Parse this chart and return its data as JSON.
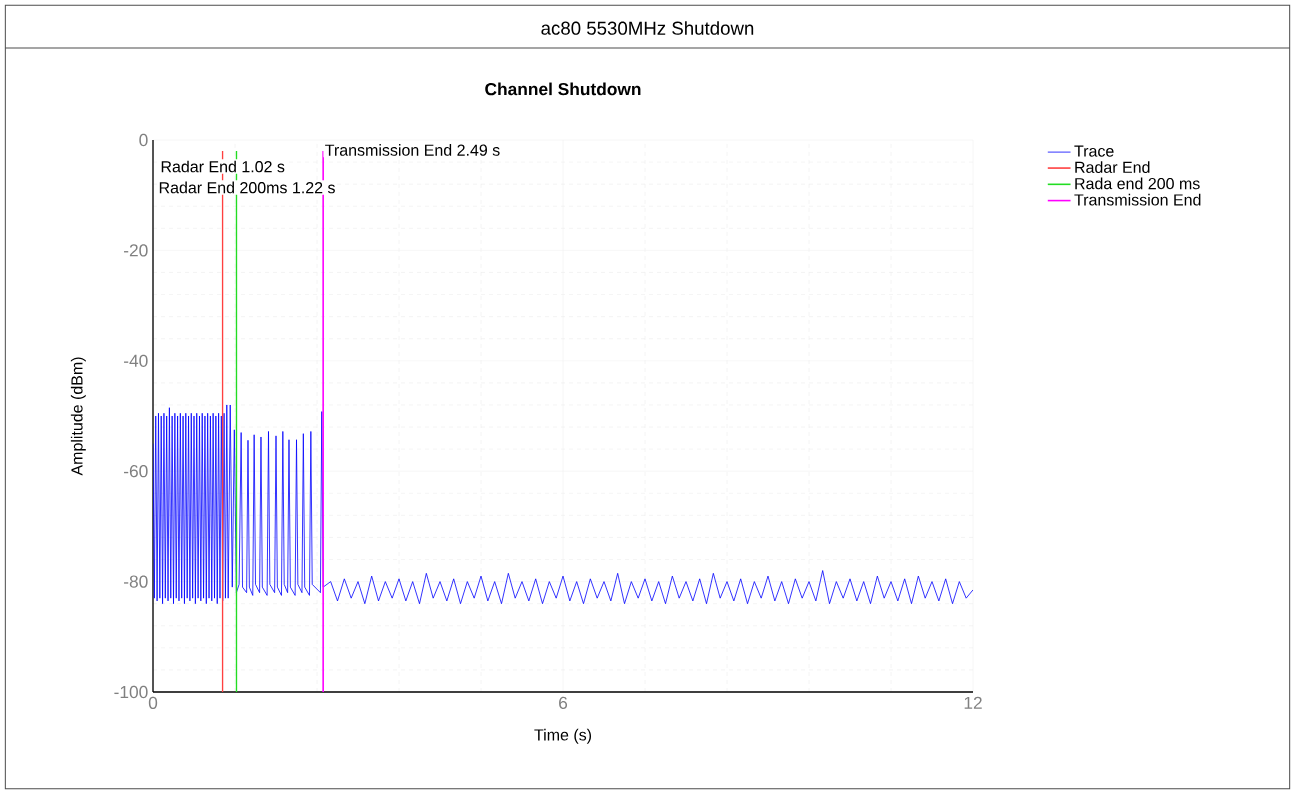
{
  "chart_data": {
    "type": "line",
    "title": "ac80 5530MHz Shutdown",
    "subtitle": "Channel Shutdown",
    "xlabel": "Time (s)",
    "ylabel": "Amplitude (dBm)",
    "xlim": [
      0,
      12
    ],
    "ylim": [
      -100,
      0
    ],
    "xticks": [
      0,
      6,
      12
    ],
    "yticks": [
      -100,
      -80,
      -60,
      -40,
      -20,
      0
    ],
    "grid": true,
    "legend": "top right",
    "marker": "none",
    "line_style": "solid",
    "series": [
      {
        "name": "Trace",
        "color": "#0000ff",
        "x": [
          0,
          0.02,
          0.04,
          0.06,
          0.08,
          0.1,
          0.12,
          0.14,
          0.16,
          0.18,
          0.2,
          0.22,
          0.24,
          0.26,
          0.28,
          0.3,
          0.32,
          0.34,
          0.36,
          0.38,
          0.4,
          0.42,
          0.44,
          0.46,
          0.48,
          0.5,
          0.52,
          0.54,
          0.56,
          0.58,
          0.6,
          0.62,
          0.64,
          0.66,
          0.68,
          0.7,
          0.72,
          0.74,
          0.76,
          0.78,
          0.8,
          0.82,
          0.84,
          0.86,
          0.88,
          0.9,
          0.92,
          0.94,
          0.96,
          0.98,
          1.0,
          1.02,
          1.04,
          1.06,
          1.08,
          1.1,
          1.13,
          1.16,
          1.19,
          1.22,
          1.26,
          1.29,
          1.31,
          1.37,
          1.39,
          1.41,
          1.46,
          1.48,
          1.5,
          1.56,
          1.58,
          1.6,
          1.67,
          1.69,
          1.71,
          1.78,
          1.8,
          1.82,
          1.88,
          1.9,
          1.92,
          1.97,
          1.99,
          2.01,
          2.08,
          2.1,
          2.12,
          2.18,
          2.2,
          2.22,
          2.29,
          2.31,
          2.33,
          2.45,
          2.47,
          2.49,
          2.6,
          2.7,
          2.8,
          2.9,
          3.0,
          3.1,
          3.2,
          3.3,
          3.4,
          3.5,
          3.6,
          3.7,
          3.8,
          3.9,
          4.0,
          4.1,
          4.2,
          4.3,
          4.4,
          4.5,
          4.6,
          4.7,
          4.8,
          4.9,
          5.0,
          5.1,
          5.2,
          5.3,
          5.4,
          5.5,
          5.6,
          5.7,
          5.8,
          5.9,
          6.0,
          6.1,
          6.2,
          6.3,
          6.4,
          6.5,
          6.6,
          6.7,
          6.8,
          6.9,
          7.0,
          7.1,
          7.2,
          7.3,
          7.4,
          7.5,
          7.6,
          7.7,
          7.8,
          7.9,
          8.0,
          8.1,
          8.2,
          8.3,
          8.4,
          8.5,
          8.6,
          8.7,
          8.8,
          8.9,
          9.0,
          9.1,
          9.2,
          9.3,
          9.4,
          9.5,
          9.6,
          9.7,
          9.8,
          9.9,
          10.0,
          10.1,
          10.2,
          10.3,
          10.4,
          10.5,
          10.6,
          10.7,
          10.8,
          10.9,
          11.0,
          11.1,
          11.2,
          11.3,
          11.4,
          11.5,
          11.6,
          11.7,
          11.8,
          11.9,
          12.0
        ],
        "values": [
          -55,
          -83,
          -50,
          -83.5,
          -49.5,
          -83,
          -50,
          -84,
          -49.5,
          -83,
          -50,
          -83.5,
          -48.5,
          -83,
          -50,
          -84,
          -49.5,
          -83,
          -50,
          -83.5,
          -49.5,
          -83,
          -50,
          -84,
          -49.5,
          -83,
          -50,
          -83.5,
          -49.5,
          -83,
          -50,
          -84,
          -49.5,
          -83,
          -50,
          -83.5,
          -49.5,
          -83,
          -50,
          -84,
          -49.5,
          -83,
          -50,
          -83.5,
          -49.5,
          -83,
          -50,
          -84,
          -49.5,
          -83,
          -50,
          -83.5,
          -49.5,
          -83,
          -48,
          -83,
          -48,
          -81,
          -52.5,
          -82,
          -80.5,
          -53,
          -81,
          -82,
          -54.4,
          -81,
          -82.5,
          -53.4,
          -80.5,
          -82,
          -53.8,
          -81,
          -82.5,
          -52.8,
          -80.5,
          -82,
          -53.6,
          -81,
          -82.5,
          -52.8,
          -80.5,
          -82,
          -54.3,
          -81,
          -82.5,
          -54.3,
          -80.5,
          -82,
          -53.2,
          -81,
          -82.5,
          -52.8,
          -80.5,
          -82,
          -49.2,
          -81,
          -80,
          -83.5,
          -79.5,
          -83,
          -80,
          -84,
          -79,
          -83.5,
          -80,
          -83,
          -79.5,
          -83.5,
          -80,
          -84,
          -78.5,
          -83,
          -80,
          -83.5,
          -79.5,
          -84,
          -80,
          -83,
          -79,
          -83.5,
          -80,
          -84,
          -78.5,
          -83,
          -80,
          -83.5,
          -79.5,
          -84,
          -80,
          -83,
          -79,
          -83.5,
          -80,
          -84,
          -79.5,
          -83,
          -80,
          -83.5,
          -78.5,
          -84,
          -80,
          -83,
          -79.5,
          -83.5,
          -80,
          -84,
          -79,
          -83,
          -80,
          -83.5,
          -79.5,
          -84,
          -78.5,
          -83,
          -80,
          -83.5,
          -79.5,
          -84,
          -80,
          -83,
          -79,
          -83.5,
          -80,
          -84,
          -79.5,
          -83,
          -80,
          -83.5,
          -78,
          -84,
          -80,
          -83,
          -79.5,
          -83.5,
          -80,
          -84,
          -79,
          -83,
          -80,
          -83.5,
          -79.5,
          -84,
          -79,
          -83,
          -80,
          -83.5,
          -79.5,
          -84,
          -80,
          -83,
          -81.5
        ]
      },
      {
        "name": "Radar End",
        "color": "#ff4040",
        "x": [
          1.02,
          1.02
        ],
        "values": [
          -2,
          -100
        ]
      },
      {
        "name": "Rada end 200 ms",
        "color": "#22dd22",
        "x": [
          1.22,
          1.22
        ],
        "values": [
          -2,
          -100
        ]
      },
      {
        "name": "Transmission End",
        "color": "#ff00ff",
        "x": [
          2.49,
          2.49
        ],
        "values": [
          -2,
          -100
        ]
      }
    ],
    "annotations": [
      {
        "text": "Radar End 1.02 s",
        "x": 1.02,
        "y": -4.8
      },
      {
        "text": "Radar End 200ms 1.22 s",
        "x": 1.22,
        "y": -8.6
      },
      {
        "text": "Transmission End 2.49 s",
        "x": 2.49,
        "y": -1.8
      }
    ]
  }
}
